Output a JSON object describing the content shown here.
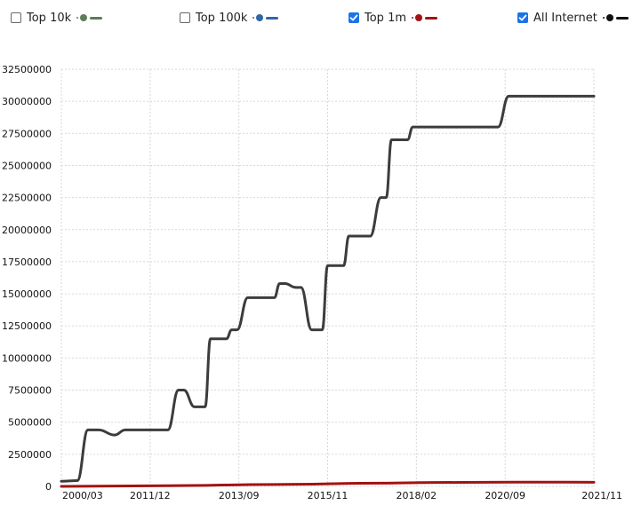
{
  "legend": {
    "items": [
      {
        "label": "Top 10k",
        "checked": false,
        "color": "#5a7f55",
        "icon": "circle-line-marker-icon"
      },
      {
        "label": "Top 100k",
        "checked": false,
        "color": "#2f66a6",
        "icon": "circle-line-marker-icon"
      },
      {
        "label": "Top 1m",
        "checked": true,
        "color": "#a31212",
        "icon": "circle-line-marker-icon"
      },
      {
        "label": "All Internet",
        "checked": true,
        "color": "#111111",
        "icon": "circle-line-marker-icon"
      }
    ]
  },
  "chart_data": {
    "type": "line",
    "title": "",
    "xlabel": "",
    "ylabel": "",
    "grid": true,
    "legend_position": "top",
    "ylim": [
      0,
      32500000
    ],
    "y_ticks": [
      0,
      2500000,
      5000000,
      7500000,
      10000000,
      12500000,
      15000000,
      17500000,
      20000000,
      22500000,
      25000000,
      27500000,
      30000000,
      32500000
    ],
    "y_tick_labels": [
      "0",
      "2500000",
      "5000000",
      "7500000",
      "10000000",
      "12500000",
      "15000000",
      "17500000",
      "20000000",
      "22500000",
      "25000000",
      "27500000",
      "30000000",
      "32500000"
    ],
    "x_tick_labels": [
      "2000/03",
      "2011/12",
      "2013/09",
      "2015/11",
      "2018/02",
      "2020/09",
      "2021/11"
    ],
    "series": [
      {
        "name": "All Internet",
        "color": "#3c3c3c",
        "x": [
          0,
          3,
          5,
          7,
          10,
          12,
          15,
          17,
          20,
          22,
          23,
          25,
          27,
          28,
          29,
          30,
          31,
          32,
          33,
          35,
          37,
          39,
          40,
          41,
          42,
          44,
          45,
          47,
          49,
          50,
          52,
          53,
          54,
          55,
          57,
          58,
          60,
          61,
          62,
          64,
          65,
          66,
          68,
          69,
          70,
          71,
          72,
          73,
          74,
          75,
          77,
          79,
          80,
          81,
          82,
          84,
          85,
          87,
          89,
          90,
          92,
          93,
          94,
          95,
          96,
          97,
          98,
          100
        ],
        "values": [
          400000,
          450000,
          4400000,
          4400000,
          4000000,
          4400000,
          4400000,
          4400000,
          4400000,
          7500000,
          7500000,
          6200000,
          6200000,
          11500000,
          11500000,
          11500000,
          11500000,
          12200000,
          12200000,
          14700000,
          14700000,
          14700000,
          14700000,
          15800000,
          15800000,
          15500000,
          15500000,
          12200000,
          12200000,
          17200000,
          17200000,
          17200000,
          19500000,
          19500000,
          19500000,
          19500000,
          22500000,
          22500000,
          27000000,
          27000000,
          27000000,
          28000000,
          28000000,
          28000000,
          28000000,
          28000000,
          28000000,
          28000000,
          28000000,
          28000000,
          28000000,
          28000000,
          28000000,
          28000000,
          28000000,
          30400000,
          30400000,
          30400000,
          30400000,
          30400000,
          30400000,
          30400000,
          30400000,
          30400000,
          30400000,
          30400000,
          30400000,
          30400000
        ]
      },
      {
        "name": "Top 1m",
        "color": "#a31212",
        "x": [
          0,
          20,
          40,
          60,
          70,
          80,
          90,
          100
        ],
        "values": [
          0,
          50000,
          150000,
          250000,
          300000,
          320000,
          330000,
          320000
        ]
      }
    ]
  }
}
